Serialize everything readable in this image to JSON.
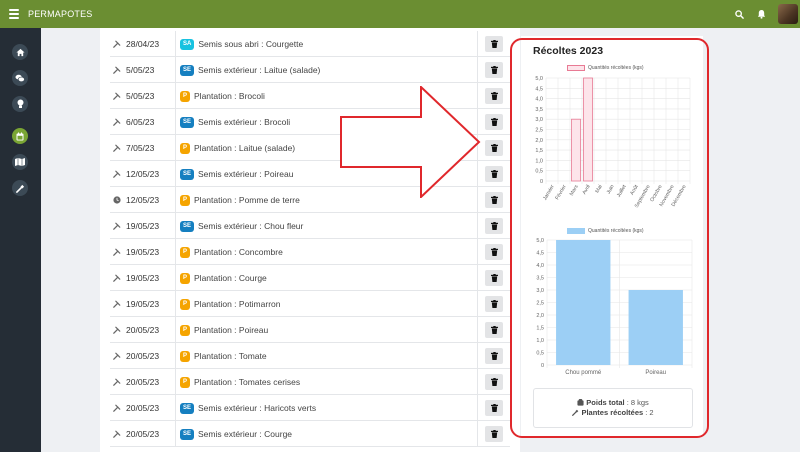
{
  "app": {
    "title": "PERMAPOTES"
  },
  "topbar_icons": [
    "search-icon",
    "bell-icon",
    "avatar"
  ],
  "sidebar": {
    "items": [
      {
        "name": "home-icon",
        "active": false
      },
      {
        "name": "chat-icon",
        "active": false
      },
      {
        "name": "lightbulb-icon",
        "active": false
      },
      {
        "name": "calendar-icon",
        "active": true
      },
      {
        "name": "map-icon",
        "active": false
      },
      {
        "name": "tool-icon",
        "active": false
      }
    ]
  },
  "activities": [
    {
      "icon": "tool-icon",
      "date": "28/04/23",
      "badge": "SA",
      "text": "Semis sous abri : Courgette"
    },
    {
      "icon": "tool-icon",
      "date": "5/05/23",
      "badge": "SE",
      "text": "Semis extérieur : Laitue (salade)"
    },
    {
      "icon": "tool-icon",
      "date": "5/05/23",
      "badge": "P",
      "text": "Plantation : Brocoli"
    },
    {
      "icon": "tool-icon",
      "date": "6/05/23",
      "badge": "SE",
      "text": "Semis extérieur : Brocoli"
    },
    {
      "icon": "tool-icon",
      "date": "7/05/23",
      "badge": "P",
      "text": "Plantation : Laitue (salade)"
    },
    {
      "icon": "tool-icon",
      "date": "12/05/23",
      "badge": "SE",
      "text": "Semis extérieur : Poireau"
    },
    {
      "icon": "clock-icon",
      "date": "12/05/23",
      "badge": "P",
      "text": "Plantation : Pomme de terre"
    },
    {
      "icon": "tool-icon",
      "date": "19/05/23",
      "badge": "SE",
      "text": "Semis extérieur : Chou fleur"
    },
    {
      "icon": "tool-icon",
      "date": "19/05/23",
      "badge": "P",
      "text": "Plantation : Concombre"
    },
    {
      "icon": "tool-icon",
      "date": "19/05/23",
      "badge": "P",
      "text": "Plantation : Courge"
    },
    {
      "icon": "tool-icon",
      "date": "19/05/23",
      "badge": "P",
      "text": "Plantation : Potimarron"
    },
    {
      "icon": "tool-icon",
      "date": "20/05/23",
      "badge": "P",
      "text": "Plantation : Poireau"
    },
    {
      "icon": "tool-icon",
      "date": "20/05/23",
      "badge": "P",
      "text": "Plantation : Tomate"
    },
    {
      "icon": "tool-icon",
      "date": "20/05/23",
      "badge": "P",
      "text": "Plantation : Tomates cerises"
    },
    {
      "icon": "tool-icon",
      "date": "20/05/23",
      "badge": "SE",
      "text": "Semis extérieur : Haricots verts"
    },
    {
      "icon": "tool-icon",
      "date": "20/05/23",
      "badge": "SE",
      "text": "Semis extérieur : Courge"
    }
  ],
  "panel": {
    "title": "Récoltes 2023",
    "summary": {
      "weight_label": "Poids total",
      "weight_value": ": 8 kgs",
      "plants_label": "Plantes récoltées",
      "plants_value": ": 2"
    }
  },
  "colors": {
    "topbar": "#6b8e32",
    "sidebar": "#252d36",
    "sidebar_active": "#7aa534",
    "badge_SA": "#17c2e0",
    "badge_SE": "#157fc0",
    "badge_P": "#f5a400",
    "annotation_red": "#e0282c"
  },
  "chart_data": [
    {
      "type": "bar",
      "categories": [
        "Janvier",
        "Février",
        "Mars",
        "Avril",
        "Mai",
        "Juin",
        "Juillet",
        "Août",
        "Septembre",
        "Octobre",
        "Novembre",
        "Décembre"
      ],
      "series": [
        {
          "name": "Quantités récoltées (kgs)",
          "values": [
            0,
            0,
            3,
            5,
            0,
            0,
            0,
            0,
            0,
            0,
            0,
            0
          ]
        }
      ],
      "ylim": [
        0,
        5
      ],
      "yticks": [
        "0",
        "0,5",
        "1,0",
        "1,5",
        "2,0",
        "2,5",
        "3,0",
        "3,5",
        "4,0",
        "4,5",
        "5,0"
      ],
      "color_fill": "#fde4ea",
      "color_stroke": "#e87a94",
      "legend_position": "top"
    },
    {
      "type": "bar",
      "categories": [
        "Chou pommé",
        "Poireau"
      ],
      "series": [
        {
          "name": "Quantités récoltées (kgs)",
          "values": [
            5,
            3
          ]
        }
      ],
      "ylim": [
        0,
        5
      ],
      "yticks": [
        "0",
        "0,5",
        "1,0",
        "1,5",
        "2,0",
        "2,5",
        "3,0",
        "3,5",
        "4,0",
        "4,5",
        "5,0"
      ],
      "color_fill": "#9ccff5",
      "color_stroke": "#9ccff5",
      "legend_position": "top"
    }
  ]
}
